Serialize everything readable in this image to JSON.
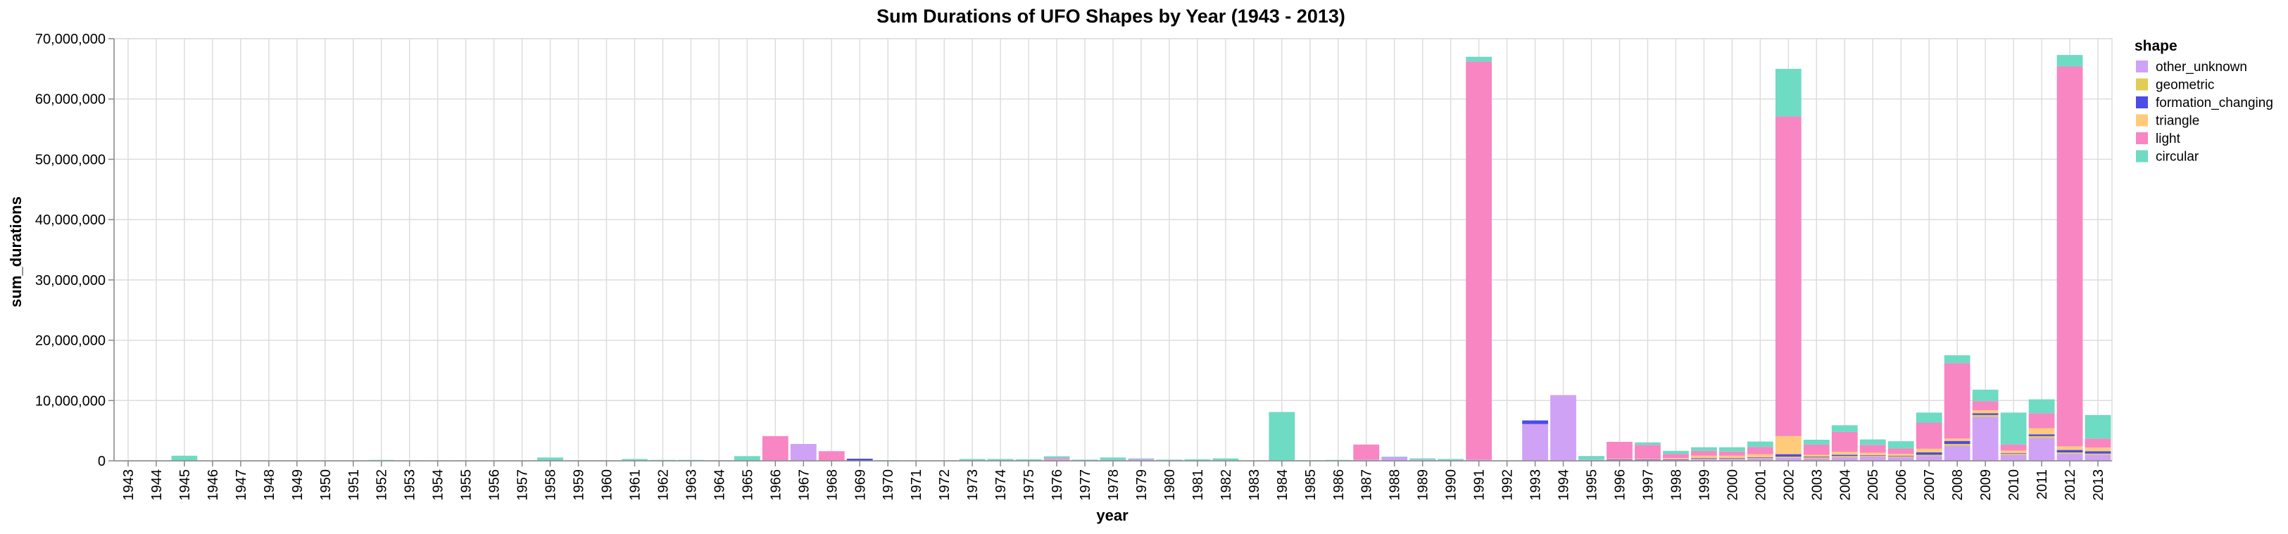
{
  "chart_data": {
    "type": "bar",
    "stacked": true,
    "title": "Sum Durations of UFO Shapes by Year (1943 - 2013)",
    "xlabel": "year",
    "ylabel": "sum_durations",
    "ylim": [
      0,
      70000000
    ],
    "yticks": [
      0,
      10000000,
      20000000,
      30000000,
      40000000,
      50000000,
      60000000,
      70000000
    ],
    "ytick_labels": [
      "0",
      "10,000,000",
      "20,000,000",
      "30,000,000",
      "40,000,000",
      "50,000,000",
      "60,000,000",
      "70,000,000"
    ],
    "grid": true,
    "legend": {
      "title": "shape",
      "position": "right"
    },
    "categories": [
      "1943",
      "1944",
      "1945",
      "1946",
      "1947",
      "1948",
      "1949",
      "1950",
      "1951",
      "1952",
      "1953",
      "1954",
      "1955",
      "1956",
      "1957",
      "1958",
      "1959",
      "1960",
      "1961",
      "1962",
      "1963",
      "1964",
      "1965",
      "1966",
      "1967",
      "1968",
      "1969",
      "1970",
      "1971",
      "1972",
      "1973",
      "1974",
      "1975",
      "1976",
      "1977",
      "1978",
      "1979",
      "1980",
      "1981",
      "1982",
      "1983",
      "1984",
      "1985",
      "1986",
      "1987",
      "1988",
      "1989",
      "1990",
      "1991",
      "1992",
      "1993",
      "1994",
      "1995",
      "1996",
      "1997",
      "1998",
      "1999",
      "2000",
      "2001",
      "2002",
      "2003",
      "2004",
      "2005",
      "2006",
      "2007",
      "2008",
      "2009",
      "2010",
      "2011",
      "2012",
      "2013"
    ],
    "series": [
      {
        "name": "other_unknown",
        "color": "#cfa2f5",
        "values": [
          0,
          0,
          50000,
          20000,
          30000,
          20000,
          20000,
          20000,
          20000,
          50000,
          30000,
          20000,
          20000,
          30000,
          20000,
          50000,
          20000,
          30000,
          100000,
          50000,
          50000,
          20000,
          80000,
          100000,
          2800000,
          100000,
          50000,
          50000,
          20000,
          30000,
          100000,
          100000,
          50000,
          250000,
          100000,
          150000,
          300000,
          100000,
          50000,
          100000,
          0,
          100000,
          50000,
          50000,
          200000,
          600000,
          200000,
          100000,
          200000,
          50000,
          6100000,
          10900000,
          200000,
          200000,
          200000,
          200000,
          300000,
          300000,
          400000,
          500000,
          400000,
          600000,
          700000,
          600000,
          800000,
          2500000,
          7300000,
          1000000,
          3800000,
          1200000,
          1000000
        ]
      },
      {
        "name": "geometric",
        "color": "#e2cc52",
        "values": [
          0,
          0,
          0,
          0,
          0,
          0,
          0,
          0,
          0,
          0,
          0,
          0,
          0,
          0,
          0,
          0,
          0,
          0,
          0,
          0,
          0,
          0,
          0,
          0,
          0,
          0,
          0,
          0,
          0,
          0,
          0,
          0,
          0,
          0,
          0,
          0,
          0,
          0,
          0,
          0,
          0,
          0,
          0,
          0,
          0,
          0,
          0,
          0,
          0,
          0,
          0,
          0,
          0,
          0,
          0,
          0,
          100000,
          100000,
          100000,
          200000,
          200000,
          200000,
          150000,
          150000,
          200000,
          300000,
          300000,
          200000,
          300000,
          200000,
          200000
        ]
      },
      {
        "name": "formation_changing",
        "color": "#4c4ce6",
        "values": [
          0,
          0,
          0,
          0,
          0,
          0,
          0,
          0,
          0,
          0,
          0,
          0,
          0,
          0,
          0,
          0,
          0,
          0,
          0,
          0,
          0,
          0,
          0,
          0,
          0,
          0,
          300000,
          0,
          0,
          0,
          0,
          0,
          0,
          0,
          0,
          0,
          0,
          0,
          0,
          0,
          0,
          0,
          0,
          0,
          0,
          0,
          0,
          0,
          0,
          0,
          600000,
          0,
          0,
          50000,
          50000,
          50000,
          50000,
          50000,
          100000,
          400000,
          100000,
          200000,
          100000,
          100000,
          400000,
          500000,
          300000,
          100000,
          300000,
          400000,
          400000
        ]
      },
      {
        "name": "triangle",
        "color": "#ffcb7a",
        "values": [
          0,
          0,
          0,
          0,
          0,
          0,
          0,
          0,
          0,
          0,
          0,
          0,
          0,
          0,
          0,
          0,
          0,
          0,
          0,
          0,
          0,
          0,
          0,
          0,
          0,
          0,
          0,
          0,
          0,
          0,
          0,
          0,
          0,
          0,
          0,
          0,
          0,
          0,
          0,
          0,
          0,
          0,
          0,
          0,
          0,
          0,
          0,
          0,
          0,
          0,
          0,
          0,
          0,
          100000,
          100000,
          200000,
          400000,
          400000,
          500000,
          3000000,
          300000,
          500000,
          400000,
          300000,
          600000,
          400000,
          500000,
          400000,
          1000000,
          600000,
          600000
        ]
      },
      {
        "name": "light",
        "color": "#f786c3",
        "values": [
          0,
          0,
          0,
          0,
          0,
          0,
          0,
          0,
          0,
          0,
          0,
          0,
          0,
          0,
          0,
          0,
          0,
          0,
          0,
          0,
          0,
          0,
          0,
          4000000,
          0,
          1500000,
          0,
          0,
          0,
          0,
          0,
          0,
          0,
          200000,
          0,
          0,
          0,
          0,
          0,
          0,
          0,
          0,
          0,
          0,
          2500000,
          0,
          0,
          0,
          66000000,
          0,
          0,
          0,
          0,
          2800000,
          2300000,
          700000,
          800000,
          700000,
          1200000,
          53000000,
          1700000,
          3300000,
          1300000,
          900000,
          4300000,
          12500000,
          1500000,
          1000000,
          2500000,
          63000000,
          1500000
        ]
      },
      {
        "name": "circular",
        "color": "#6edbc3",
        "values": [
          0,
          0,
          800000,
          0,
          0,
          0,
          0,
          0,
          0,
          100000,
          0,
          0,
          0,
          0,
          0,
          500000,
          50000,
          50000,
          200000,
          100000,
          100000,
          50000,
          700000,
          0,
          0,
          0,
          0,
          50000,
          50000,
          50000,
          200000,
          200000,
          200000,
          300000,
          100000,
          400000,
          100000,
          100000,
          200000,
          300000,
          0,
          8000000,
          50000,
          100000,
          0,
          100000,
          200000,
          200000,
          800000,
          0,
          0,
          0,
          600000,
          0,
          400000,
          500000,
          600000,
          700000,
          900000,
          7900000,
          800000,
          1100000,
          900000,
          1200000,
          1700000,
          1300000,
          1900000,
          5300000,
          2300000,
          1900000,
          3900000
        ]
      }
    ]
  }
}
